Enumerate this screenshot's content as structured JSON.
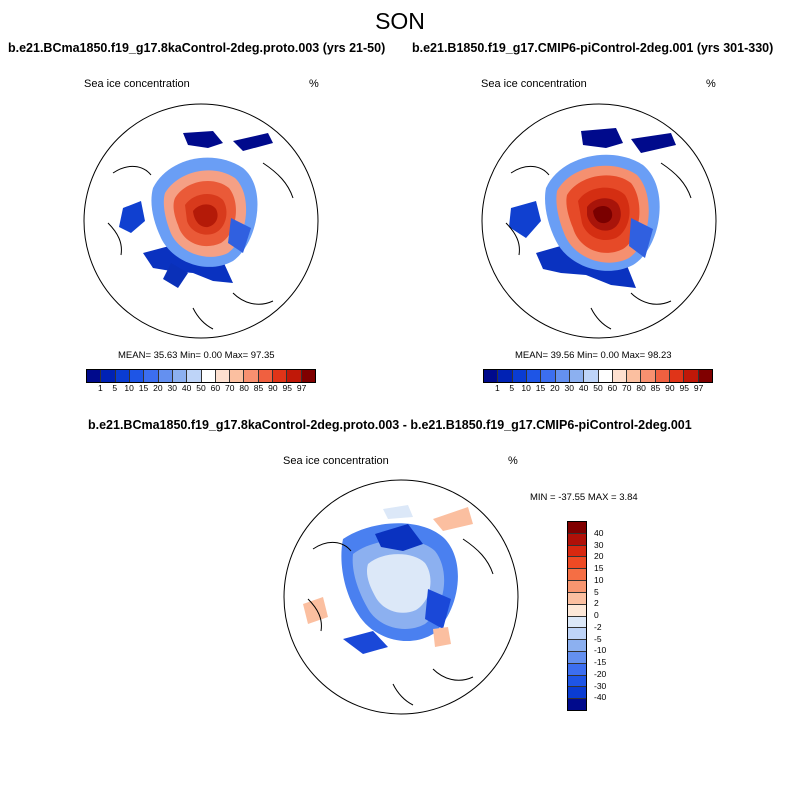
{
  "figure_title": "SON",
  "panels": [
    {
      "title": "b.e21.BCma1850.f19_g17.8kaControl-2deg.proto.003 (yrs 21-50)",
      "variable": "Sea ice concentration",
      "units": "%",
      "stats": "MEAN=  35.63  Min=   0.00  Max=  97.35"
    },
    {
      "title": "b.e21.B1850.f19_g17.CMIP6-piControl-2deg.001 (yrs 301-330)",
      "variable": "Sea ice concentration",
      "units": "%",
      "stats": "MEAN=  39.56  Min=   0.00  Max=  98.23"
    },
    {
      "title": "b.e21.BCma1850.f19_g17.8kaControl-2deg.proto.003 - b.e21.B1850.f19_g17.CMIP6-piControl-2deg.001",
      "variable": "Sea ice concentration",
      "units": "%",
      "stats": "MIN = -37.55 MAX =   3.84"
    }
  ],
  "colorbar_abs": {
    "labels": [
      "1",
      "5",
      "10",
      "15",
      "20",
      "30",
      "40",
      "50",
      "60",
      "70",
      "80",
      "85",
      "90",
      "95",
      "97"
    ],
    "colors": [
      "#000a8c",
      "#0022b4",
      "#0a3cd2",
      "#1e55e6",
      "#3c6ef0",
      "#6490f0",
      "#8cb0f0",
      "#bed4f8",
      "#ffffff",
      "#fde0d0",
      "#fbbfa0",
      "#f89070",
      "#f06040",
      "#e03418",
      "#c01808",
      "#800000"
    ]
  },
  "colorbar_diff": {
    "labels": [
      "40",
      "30",
      "20",
      "15",
      "10",
      "5",
      "2",
      "0",
      "-2",
      "-5",
      "-10",
      "-15",
      "-20",
      "-30",
      "-40"
    ],
    "colors": [
      "#800000",
      "#b01008",
      "#d82810",
      "#ee4a24",
      "#f56e44",
      "#f89670",
      "#fbbfa0",
      "#fde8d8",
      "#dce8f8",
      "#bed4f8",
      "#8cb0f0",
      "#6490f0",
      "#3c6ef0",
      "#1e55e6",
      "#0a3cd2",
      "#000a8c"
    ]
  }
}
